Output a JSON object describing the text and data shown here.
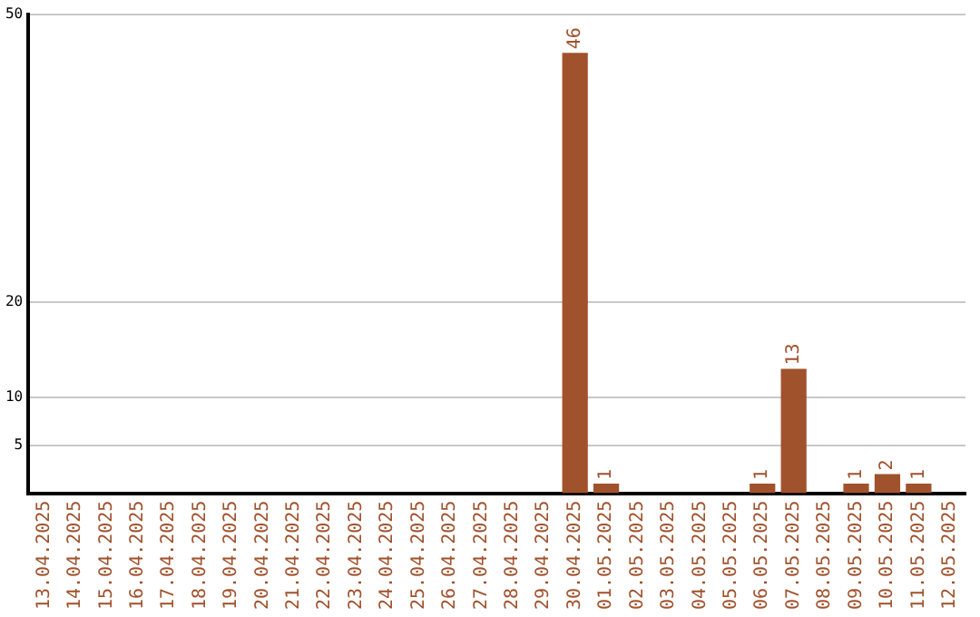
{
  "chart_data": {
    "type": "bar",
    "categories": [
      "13.04.2025",
      "14.04.2025",
      "15.04.2025",
      "16.04.2025",
      "17.04.2025",
      "18.04.2025",
      "19.04.2025",
      "20.04.2025",
      "21.04.2025",
      "22.04.2025",
      "23.04.2025",
      "24.04.2025",
      "25.04.2025",
      "26.04.2025",
      "27.04.2025",
      "28.04.2025",
      "29.04.2025",
      "30.04.2025",
      "01.05.2025",
      "02.05.2025",
      "03.05.2025",
      "04.05.2025",
      "05.05.2025",
      "06.05.2025",
      "07.05.2025",
      "08.05.2025",
      "09.05.2025",
      "10.05.2025",
      "11.05.2025",
      "12.05.2025"
    ],
    "values": [
      0,
      0,
      0,
      0,
      0,
      0,
      0,
      0,
      0,
      0,
      0,
      0,
      0,
      0,
      0,
      0,
      0,
      46,
      1,
      0,
      0,
      0,
      0,
      1,
      13,
      0,
      1,
      2,
      1,
      0
    ],
    "value_labels": [
      null,
      null,
      null,
      null,
      null,
      null,
      null,
      null,
      null,
      null,
      null,
      null,
      null,
      null,
      null,
      null,
      null,
      "46",
      "1",
      null,
      null,
      null,
      null,
      "1",
      "13",
      null,
      "1",
      "2",
      "1",
      null
    ],
    "color": "#a0522d",
    "ylim": [
      0,
      50
    ],
    "yticks": [
      5,
      10,
      20,
      50
    ],
    "grid": "y"
  }
}
